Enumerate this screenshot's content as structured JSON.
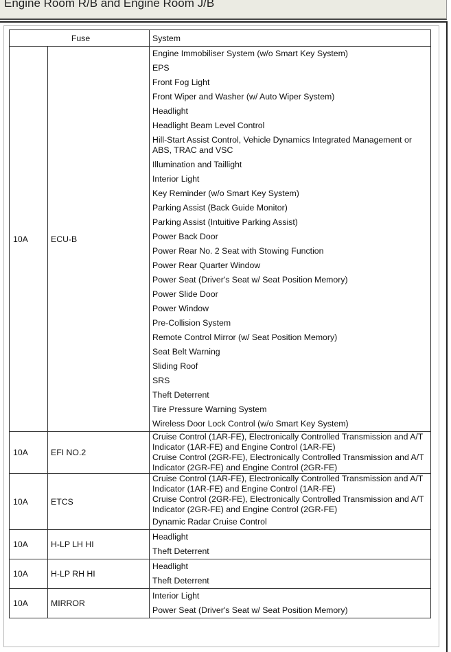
{
  "title": "Engine Room R/B and Engine Room J/B",
  "table": {
    "headers": {
      "fuse": "Fuse",
      "system": "System"
    },
    "rows": [
      {
        "amperage": "10A",
        "name": "ECU-B",
        "systems": [
          "Engine Immobiliser System (w/o Smart Key System)",
          "EPS",
          "Front Fog Light",
          "Front Wiper and Washer (w/ Auto Wiper System)",
          "Headlight",
          "Headlight Beam Level Control",
          "Hill-Start Assist Control, Vehicle Dynamics Integrated Management or ABS, TRAC and VSC",
          "Illumination and Taillight",
          "Interior Light",
          "Key Reminder (w/o Smart Key System)",
          "Parking Assist (Back Guide Monitor)",
          "Parking Assist (Intuitive Parking Assist)",
          "Power Back Door",
          "Power Rear No. 2 Seat with Stowing Function",
          "Power Rear Quarter Window",
          "Power Seat (Driver's Seat w/ Seat Position Memory)",
          "Power Slide Door",
          "Power Window",
          "Pre-Collision System",
          "Remote Control Mirror (w/ Seat Position Memory)",
          "Seat Belt Warning",
          "Sliding Roof",
          "SRS",
          "Theft Deterrent",
          "Tire Pressure Warning System",
          "Wireless Door Lock Control (w/o Smart Key System)"
        ]
      },
      {
        "amperage": "10A",
        "name": "EFI NO.2",
        "systems": [
          "Cruise Control (1AR-FE), Electronically Controlled Transmission and A/T Indicator (1AR-FE) and Engine Control (1AR-FE)",
          "Cruise Control (2GR-FE), Electronically Controlled Transmission and A/T Indicator (2GR-FE) and Engine Control (2GR-FE)"
        ]
      },
      {
        "amperage": "10A",
        "name": "ETCS",
        "systems": [
          "Cruise Control (1AR-FE), Electronically Controlled Transmission and A/T Indicator (1AR-FE) and Engine Control (1AR-FE)",
          "Cruise Control (2GR-FE), Electronically Controlled Transmission and A/T Indicator (2GR-FE) and Engine Control (2GR-FE)",
          "Dynamic Radar Cruise Control"
        ]
      },
      {
        "amperage": "10A",
        "name": "H-LP LH HI",
        "systems": [
          "Headlight",
          "Theft Deterrent"
        ]
      },
      {
        "amperage": "10A",
        "name": "H-LP RH HI",
        "systems": [
          "Headlight",
          "Theft Deterrent"
        ]
      },
      {
        "amperage": "10A",
        "name": "MIRROR",
        "systems": [
          "Interior Light",
          "Power Seat (Driver's Seat w/ Seat Position Memory)"
        ]
      }
    ]
  }
}
